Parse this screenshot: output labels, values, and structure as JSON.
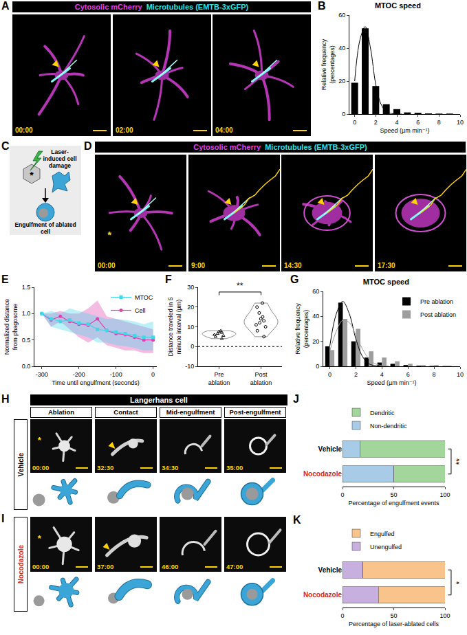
{
  "figure": {
    "A": {
      "label": "A",
      "header": [
        "Cytosolic mCherry",
        "Microtubules (EMTB-3xGFP)"
      ],
      "timestamps": [
        "00:00",
        "02:00",
        "04:00"
      ]
    },
    "C": {
      "label": "C",
      "top_text": "Laser-induced cell damage",
      "bottom_text": "Engulfment of ablated cell",
      "asterisk": "*"
    },
    "D": {
      "label": "D",
      "header": [
        "Cytosolic mCherry",
        "Microtubules (EMTB-3xGFP)"
      ],
      "timestamps": [
        "00:00",
        "9:00",
        "14:30",
        "17:30"
      ],
      "asterisk": "*"
    },
    "H": {
      "label": "H",
      "header": "Langerhans cell",
      "columns": [
        "Ablation",
        "Contact",
        "Mid-engulfment",
        "Post-engulfment"
      ],
      "row": "Vehicle",
      "timestamps": [
        "00:00",
        "32:30",
        "34:30",
        "35:00"
      ],
      "asterisk": "*"
    },
    "I": {
      "label": "I",
      "row": "Nocodazole",
      "timestamps": [
        "00:00",
        "37:00",
        "46:00",
        "47:00"
      ],
      "asterisk": "*"
    }
  },
  "chart_data": [
    {
      "label": "B",
      "type": "bar",
      "title": "MTOC speed",
      "x_label": "Speed (µm min⁻¹)",
      "y_label": "Relative frequency (percentages)",
      "x": [
        0,
        1,
        2,
        3,
        4,
        5,
        6,
        7,
        8,
        9
      ],
      "values": [
        19,
        52,
        17,
        6,
        3,
        1,
        0.8,
        0.4,
        0.3,
        0.3
      ],
      "color": "#000000",
      "fit_x": [
        0,
        0.5,
        1,
        1.5,
        2,
        2.5,
        3,
        3.5,
        4,
        4.5
      ],
      "fit": [
        20,
        45,
        53,
        40,
        18,
        6,
        1.5,
        0.3,
        0,
        0
      ],
      "xlim": [
        -0.5,
        10
      ],
      "xticks": [
        0,
        2,
        4,
        6,
        8,
        10
      ],
      "ylim": [
        0,
        60
      ],
      "yticks": [
        0,
        20,
        40,
        60
      ]
    },
    {
      "label": "E",
      "type": "line",
      "x_label": "Time until engulfment (seconds)",
      "y_label": "Normalized distance from phagosome",
      "x": [
        -300,
        -275,
        -250,
        -225,
        -200,
        -175,
        -150,
        -125,
        -100,
        -75,
        -50,
        -25,
        0
      ],
      "series": [
        {
          "name": "Cell",
          "color": "#e040b0",
          "marker": "circle",
          "values": [
            1.0,
            0.88,
            0.95,
            0.85,
            0.8,
            0.78,
            0.9,
            0.68,
            0.62,
            0.6,
            0.55,
            0.5,
            0.5
          ],
          "lower": [
            1.0,
            0.75,
            0.85,
            0.7,
            0.55,
            0.45,
            0.55,
            0.4,
            0.35,
            0.3,
            0.3,
            0.25,
            0.25
          ],
          "upper": [
            1.0,
            1.0,
            1.05,
            1.0,
            1.0,
            1.1,
            1.25,
            0.95,
            0.9,
            0.85,
            0.8,
            0.75,
            0.7
          ]
        },
        {
          "name": "MTOC",
          "color": "#40d8e8",
          "marker": "square",
          "values": [
            1.0,
            0.9,
            0.85,
            0.88,
            0.82,
            0.8,
            0.7,
            0.68,
            0.65,
            0.62,
            0.58,
            0.55,
            0.55
          ],
          "lower": [
            1.0,
            0.75,
            0.7,
            0.65,
            0.6,
            0.55,
            0.45,
            0.45,
            0.4,
            0.38,
            0.35,
            0.3,
            0.3
          ],
          "upper": [
            1.0,
            1.05,
            1.0,
            1.1,
            1.05,
            1.0,
            0.95,
            0.9,
            0.9,
            0.88,
            0.85,
            0.8,
            0.85
          ]
        }
      ],
      "xlim": [
        -320,
        10
      ],
      "xticks": [
        -300,
        -200,
        -100,
        0
      ],
      "ylim": [
        0,
        1.5
      ],
      "yticks": [
        {
          "value": 0,
          "label": "0.0"
        },
        0.5,
        {
          "value": 1,
          "label": "1.0"
        },
        1.5
      ],
      "legend": "top right"
    },
    {
      "label": "F",
      "type": "violin",
      "y_label": "Distance traveled in 5 minute interval (µm)",
      "categories": [
        "Pre ablation",
        "Post ablation"
      ],
      "values": [
        [
          4,
          5,
          5.5,
          6,
          6.5,
          7,
          7.5,
          8
        ],
        [
          5,
          8,
          10,
          11,
          12,
          13,
          14,
          15,
          17,
          20,
          22
        ]
      ],
      "reference_line": 0,
      "significance": "**",
      "ylim": [
        -10,
        30
      ],
      "yticks": [
        -10,
        0,
        10,
        20,
        30
      ]
    },
    {
      "label": "G",
      "type": "bar",
      "title": "MTOC speed",
      "x_label": "Speed (µm min⁻¹)",
      "y_label": "Relative frequency (percentages)",
      "x": [
        0,
        1,
        2,
        3,
        4,
        5,
        6,
        7,
        8,
        9
      ],
      "fit_x": [
        0,
        0.5,
        1,
        1.5,
        2,
        2.5,
        3,
        3.5,
        4,
        4.5
      ],
      "series": [
        {
          "name": "Pre ablation",
          "color": "#000000",
          "values": [
            16,
            51,
            20,
            7,
            3,
            2,
            1,
            0.5,
            0.3,
            0.2
          ],
          "fit": [
            16,
            42,
            52,
            42,
            22,
            8,
            2,
            0.5,
            0.1,
            0
          ]
        },
        {
          "name": "Post ablation",
          "color": "#9e9e9e",
          "values": [
            13,
            38,
            30,
            12,
            7,
            4,
            2,
            1,
            1,
            0.5
          ],
          "fit": [
            12,
            28,
            37,
            35,
            25,
            14,
            6,
            2,
            0.5,
            0.2
          ]
        }
      ],
      "xlim": [
        -0.5,
        10
      ],
      "xticks": [
        0,
        2,
        4,
        6,
        8,
        10
      ],
      "ylim": [
        0,
        60
      ],
      "yticks": [
        0,
        20,
        40,
        60
      ],
      "legend": "top right"
    },
    {
      "label": "J",
      "type": "bar",
      "orientation": "horizontal",
      "stacked": true,
      "categories": [
        "Vehicle",
        "Nocodazole"
      ],
      "series": [
        {
          "name": "Non-dendritic",
          "color": "#a8cbe8",
          "values": [
            17,
            50
          ]
        },
        {
          "name": "Dendritic",
          "color": "#a3d69a",
          "values": [
            83,
            50
          ]
        }
      ],
      "x_label": "Percentage of engulfment events",
      "xlim": [
        0,
        100
      ],
      "xticks": [
        0,
        50,
        100
      ],
      "significance": "**",
      "legend": "top"
    },
    {
      "label": "K",
      "type": "bar",
      "orientation": "horizontal",
      "stacked": true,
      "categories": [
        "Vehicle",
        "Nocodazole"
      ],
      "series": [
        {
          "name": "Unengulfed",
          "color": "#c7b0e0",
          "values": [
            20,
            35
          ]
        },
        {
          "name": "Engulfed",
          "color": "#f8c48c",
          "values": [
            80,
            65
          ]
        }
      ],
      "x_label": "Percentage of laser-ablated cells",
      "xlim": [
        0,
        100
      ],
      "xticks": [
        0,
        50,
        100
      ],
      "significance": "*",
      "legend": "top"
    }
  ]
}
